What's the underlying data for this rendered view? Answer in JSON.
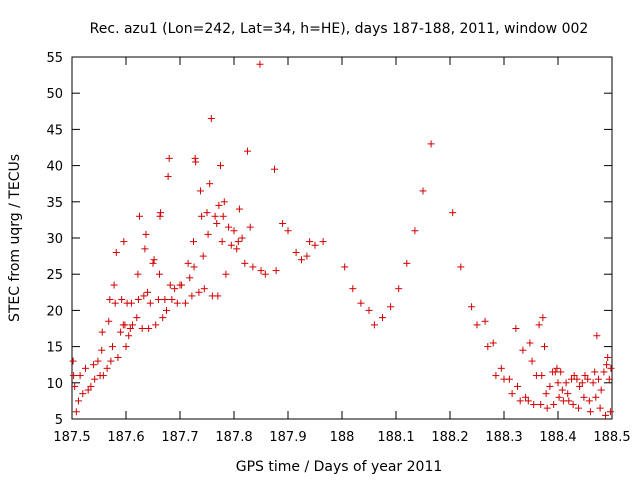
{
  "chart_data": {
    "type": "scatter",
    "title": "Rec. azu1 (Lon=242, Lat=34, h=HE), days 187-188, 2011, window 002",
    "xlabel": "GPS time / Days of year 2011",
    "ylabel": "STEC from uqrg / TECUs",
    "xlim": [
      187.5,
      188.5
    ],
    "ylim": [
      5,
      55
    ],
    "xticks": [
      "187.5",
      "187.6",
      "187.7",
      "187.8",
      "187.9",
      "188",
      "188.1",
      "188.2",
      "188.3",
      "188.4",
      "188.5"
    ],
    "yticks": [
      "5",
      "10",
      "15",
      "20",
      "25",
      "30",
      "35",
      "40",
      "45",
      "50",
      "55"
    ],
    "grid": false,
    "marker": "+",
    "series": [
      {
        "color": "#d00000",
        "points": [
          [
            187.502,
            13.0
          ],
          [
            187.503,
            11.0
          ],
          [
            187.505,
            9.5
          ],
          [
            187.508,
            6.0
          ],
          [
            187.512,
            7.5
          ],
          [
            187.515,
            11.0
          ],
          [
            187.52,
            8.5
          ],
          [
            187.525,
            12.0
          ],
          [
            187.53,
            9.0
          ],
          [
            187.535,
            9.5
          ],
          [
            187.54,
            12.5
          ],
          [
            187.542,
            10.5
          ],
          [
            187.548,
            13.0
          ],
          [
            187.552,
            11.0
          ],
          [
            187.555,
            14.5
          ],
          [
            187.556,
            17.0
          ],
          [
            187.558,
            11.0
          ],
          [
            187.565,
            12.0
          ],
          [
            187.568,
            18.5
          ],
          [
            187.57,
            21.5
          ],
          [
            187.572,
            13.0
          ],
          [
            187.575,
            15.0
          ],
          [
            187.578,
            23.5
          ],
          [
            187.58,
            21.0
          ],
          [
            187.582,
            28.0
          ],
          [
            187.585,
            13.5
          ],
          [
            187.59,
            17.0
          ],
          [
            187.592,
            21.5
          ],
          [
            187.595,
            18.0
          ],
          [
            187.596,
            29.5
          ],
          [
            187.598,
            18.0
          ],
          [
            187.6,
            15.0
          ],
          [
            187.602,
            21.0
          ],
          [
            187.605,
            16.5
          ],
          [
            187.608,
            17.5
          ],
          [
            187.61,
            21.0
          ],
          [
            187.612,
            18.0
          ],
          [
            187.62,
            19.0
          ],
          [
            187.622,
            25.0
          ],
          [
            187.623,
            21.5
          ],
          [
            187.625,
            33.0
          ],
          [
            187.63,
            17.5
          ],
          [
            187.633,
            22.0
          ],
          [
            187.635,
            28.5
          ],
          [
            187.637,
            30.5
          ],
          [
            187.64,
            22.5
          ],
          [
            187.642,
            17.5
          ],
          [
            187.645,
            21.0
          ],
          [
            187.65,
            26.5
          ],
          [
            187.652,
            27.0
          ],
          [
            187.655,
            18.0
          ],
          [
            187.66,
            21.5
          ],
          [
            187.662,
            25.0
          ],
          [
            187.663,
            33.0
          ],
          [
            187.664,
            33.5
          ],
          [
            187.668,
            19.0
          ],
          [
            187.672,
            21.5
          ],
          [
            187.675,
            20.0
          ],
          [
            187.678,
            38.5
          ],
          [
            187.68,
            41.0
          ],
          [
            187.682,
            23.5
          ],
          [
            187.685,
            21.5
          ],
          [
            187.69,
            23.0
          ],
          [
            187.695,
            21.0
          ],
          [
            187.7,
            23.5
          ],
          [
            187.703,
            23.5
          ],
          [
            187.71,
            21.0
          ],
          [
            187.715,
            26.5
          ],
          [
            187.718,
            24.5
          ],
          [
            187.722,
            22.0
          ],
          [
            187.725,
            29.5
          ],
          [
            187.726,
            26.0
          ],
          [
            187.728,
            41.0
          ],
          [
            187.729,
            40.5
          ],
          [
            187.735,
            22.5
          ],
          [
            187.738,
            36.5
          ],
          [
            187.74,
            33.0
          ],
          [
            187.743,
            27.5
          ],
          [
            187.745,
            23.0
          ],
          [
            187.75,
            33.5
          ],
          [
            187.752,
            30.5
          ],
          [
            187.755,
            37.5
          ],
          [
            187.758,
            46.5
          ],
          [
            187.76,
            22.0
          ],
          [
            187.765,
            33.0
          ],
          [
            187.768,
            32.0
          ],
          [
            187.77,
            22.0
          ],
          [
            187.772,
            34.5
          ],
          [
            187.775,
            40.0
          ],
          [
            187.778,
            29.5
          ],
          [
            187.78,
            33.0
          ],
          [
            187.782,
            35.0
          ],
          [
            187.785,
            25.0
          ],
          [
            187.79,
            31.5
          ],
          [
            187.795,
            29.0
          ],
          [
            187.8,
            31.0
          ],
          [
            187.805,
            28.5
          ],
          [
            187.808,
            29.5
          ],
          [
            187.81,
            34.0
          ],
          [
            187.815,
            30.0
          ],
          [
            187.82,
            26.5
          ],
          [
            187.825,
            42.0
          ],
          [
            187.83,
            31.5
          ],
          [
            187.835,
            26.0
          ],
          [
            187.848,
            54.0
          ],
          [
            187.85,
            25.5
          ],
          [
            187.858,
            25.0
          ],
          [
            187.875,
            39.5
          ],
          [
            187.878,
            25.5
          ],
          [
            187.89,
            32.0
          ],
          [
            187.9,
            31.0
          ],
          [
            187.915,
            28.0
          ],
          [
            187.925,
            27.0
          ],
          [
            187.935,
            27.5
          ],
          [
            187.94,
            29.5
          ],
          [
            187.95,
            29.0
          ],
          [
            187.965,
            29.5
          ],
          [
            188.005,
            26.0
          ],
          [
            188.02,
            23.0
          ],
          [
            188.035,
            21.0
          ],
          [
            188.05,
            20.0
          ],
          [
            188.06,
            18.0
          ],
          [
            188.075,
            19.0
          ],
          [
            188.09,
            20.5
          ],
          [
            188.105,
            23.0
          ],
          [
            188.12,
            26.5
          ],
          [
            188.135,
            31.0
          ],
          [
            188.15,
            36.5
          ],
          [
            188.165,
            43.0
          ],
          [
            188.205,
            33.5
          ],
          [
            188.22,
            26.0
          ],
          [
            188.24,
            20.5
          ],
          [
            188.25,
            18.0
          ],
          [
            188.265,
            18.5
          ],
          [
            188.27,
            15.0
          ],
          [
            188.28,
            15.5
          ],
          [
            188.285,
            11.0
          ],
          [
            188.295,
            12.0
          ],
          [
            188.3,
            10.5
          ],
          [
            188.31,
            10.5
          ],
          [
            188.315,
            8.5
          ],
          [
            188.322,
            17.5
          ],
          [
            188.325,
            9.5
          ],
          [
            188.33,
            7.5
          ],
          [
            188.335,
            14.5
          ],
          [
            188.34,
            8.0
          ],
          [
            188.345,
            7.5
          ],
          [
            188.348,
            15.5
          ],
          [
            188.352,
            13.0
          ],
          [
            188.355,
            7.0
          ],
          [
            188.36,
            11.0
          ],
          [
            188.365,
            18.0
          ],
          [
            188.368,
            7.0
          ],
          [
            188.37,
            11.0
          ],
          [
            188.372,
            19.0
          ],
          [
            188.375,
            15.0
          ],
          [
            188.378,
            8.5
          ],
          [
            188.38,
            6.5
          ],
          [
            188.385,
            9.5
          ],
          [
            188.39,
            11.5
          ],
          [
            188.392,
            7.0
          ],
          [
            188.395,
            11.5
          ],
          [
            188.398,
            12.0
          ],
          [
            188.4,
            10.0
          ],
          [
            188.402,
            8.0
          ],
          [
            188.405,
            11.5
          ],
          [
            188.408,
            9.0
          ],
          [
            188.41,
            7.5
          ],
          [
            188.415,
            10.0
          ],
          [
            188.418,
            8.5
          ],
          [
            188.42,
            7.5
          ],
          [
            188.425,
            10.5
          ],
          [
            188.428,
            7.0
          ],
          [
            188.43,
            11.0
          ],
          [
            188.435,
            10.5
          ],
          [
            188.438,
            6.5
          ],
          [
            188.44,
            9.5
          ],
          [
            188.445,
            10.0
          ],
          [
            188.448,
            8.0
          ],
          [
            188.45,
            11.0
          ],
          [
            188.455,
            10.5
          ],
          [
            188.458,
            7.5
          ],
          [
            188.46,
            6.0
          ],
          [
            188.465,
            10.0
          ],
          [
            188.468,
            11.5
          ],
          [
            188.47,
            8.0
          ],
          [
            188.472,
            16.5
          ],
          [
            188.475,
            10.5
          ],
          [
            188.478,
            6.5
          ],
          [
            188.48,
            9.0
          ],
          [
            188.485,
            11.5
          ],
          [
            188.488,
            5.5
          ],
          [
            188.49,
            12.5
          ],
          [
            188.492,
            13.5
          ],
          [
            188.495,
            10.5
          ],
          [
            188.497,
            6.0
          ],
          [
            188.498,
            12.0
          ]
        ]
      }
    ]
  }
}
